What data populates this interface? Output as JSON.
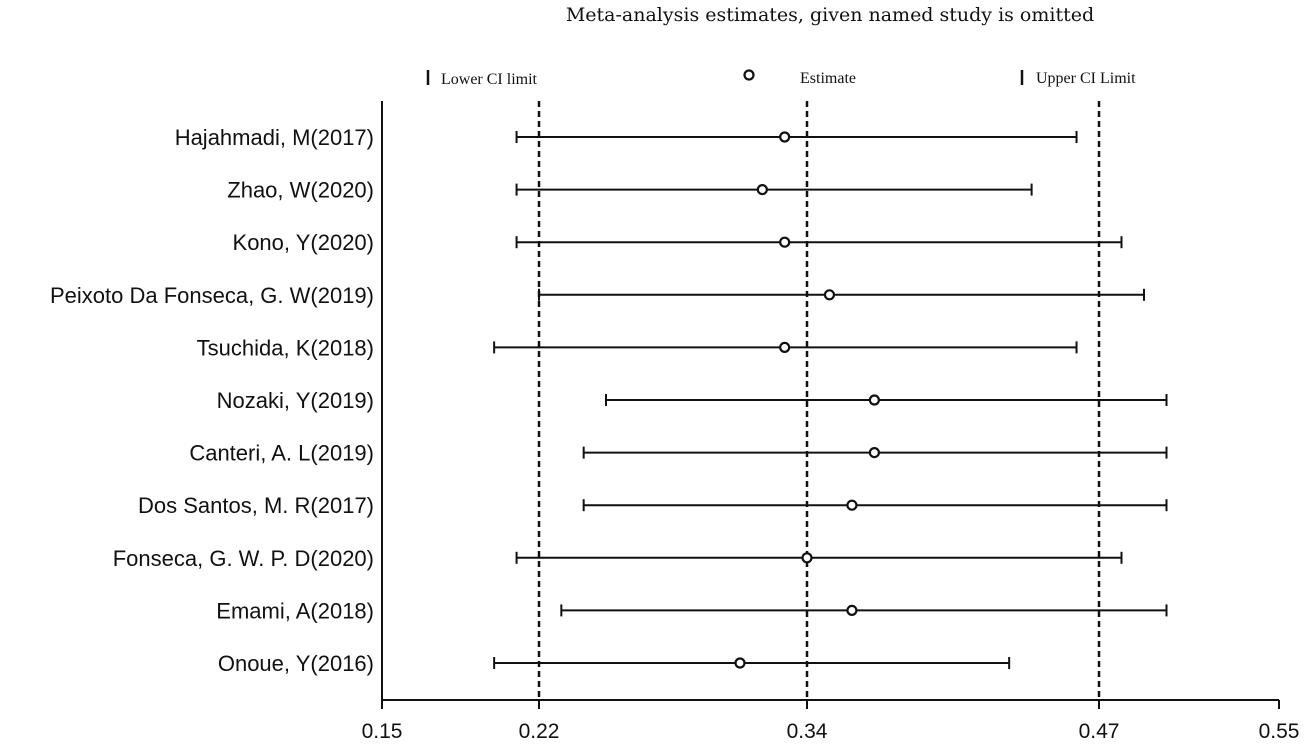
{
  "chart_data": {
    "type": "forest",
    "title": "Meta-analysis estimates, given named study is omitted",
    "legend": {
      "lower": "Lower CI limit",
      "estimate": "Estimate",
      "upper": "Upper CI Limit"
    },
    "xlim": [
      0.15,
      0.55
    ],
    "xticks": [
      "0.15",
      "0.22",
      "0.34",
      "0.47",
      "0.55"
    ],
    "reference_lines": [
      0.22,
      0.34,
      0.47
    ],
    "studies": [
      {
        "label": "Hajahmadi, M(2017)",
        "estimate": 0.33,
        "lower": 0.21,
        "upper": 0.46
      },
      {
        "label": "Zhao, W(2020)",
        "estimate": 0.32,
        "lower": 0.21,
        "upper": 0.44
      },
      {
        "label": "Kono, Y(2020)",
        "estimate": 0.33,
        "lower": 0.21,
        "upper": 0.48
      },
      {
        "label": "Peixoto Da Fonseca, G. W(2019)",
        "estimate": 0.35,
        "lower": 0.22,
        "upper": 0.49
      },
      {
        "label": "Tsuchida, K(2018)",
        "estimate": 0.33,
        "lower": 0.2,
        "upper": 0.46
      },
      {
        "label": "Nozaki, Y(2019)",
        "estimate": 0.37,
        "lower": 0.25,
        "upper": 0.5
      },
      {
        "label": "Canteri, A. L(2019)",
        "estimate": 0.37,
        "lower": 0.24,
        "upper": 0.5
      },
      {
        "label": "Dos Santos, M. R(2017)",
        "estimate": 0.36,
        "lower": 0.24,
        "upper": 0.5
      },
      {
        "label": "Fonseca, G. W. P. D(2020)",
        "estimate": 0.34,
        "lower": 0.21,
        "upper": 0.48
      },
      {
        "label": "Emami, A(2018)",
        "estimate": 0.36,
        "lower": 0.23,
        "upper": 0.5
      },
      {
        "label": "Onoue, Y(2016)",
        "estimate": 0.31,
        "lower": 0.2,
        "upper": 0.43
      }
    ]
  }
}
